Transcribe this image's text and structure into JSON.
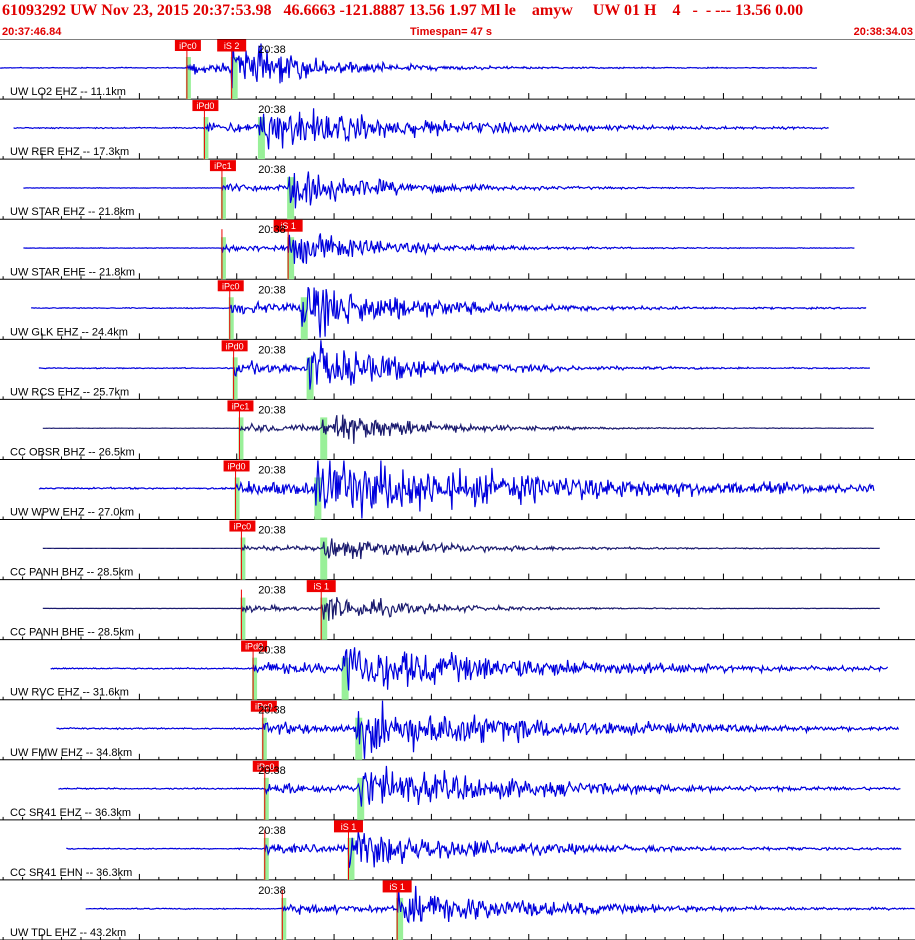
{
  "header": {
    "title": "61093292 UW Nov 23, 2015 20:37:53.98   46.6663 -121.8887 13.56 1.97 Ml le    amyw     UW 01 H    4   -  - --- 13.56 0.00",
    "start_time": "20:37:46.84",
    "timespan": "Timespan=  47 s",
    "end_time": "20:38:34.03"
  },
  "colors": {
    "trace_primary": "#0000dd",
    "trace_secondary": "#1a1a6e",
    "pick_box": "#ee0000",
    "pick_box_light": "#ffdddd",
    "pick_window": "#99f099",
    "header_text": "#e00000",
    "tick": "#000000"
  },
  "chart_data": {
    "type": "line",
    "title": "61093292 UW Nov 23, 2015 20:37:53.98",
    "start_time": "20:37:46.84",
    "end_time": "20:38:34.03",
    "timespan_s": 47,
    "minute_label": "20:38",
    "minute_offset_s": 13.16,
    "channels": [
      {
        "label": "UW LO2 EHZ -- 11.1km",
        "dist_km": 11.1,
        "trace_start_s": 0.0,
        "trace_end_s": 42.0,
        "p_time_s": 9.6,
        "p_label": "iPc0",
        "s_time_s": 11.9,
        "s_label": "iS 2",
        "amp": 1.0,
        "decay_s": 4.0,
        "color": "primary",
        "noise": 0.02
      },
      {
        "label": "UW RER EHZ -- 17.3km",
        "dist_km": 17.3,
        "trace_start_s": 0.7,
        "trace_end_s": 42.6,
        "p_time_s": 10.5,
        "p_label": "iPd0",
        "s_time_s": 13.3,
        "s_label": "",
        "amp": 0.9,
        "decay_s": 7.0,
        "color": "primary",
        "noise": 0.03
      },
      {
        "label": "UW STAR EHZ -- 21.8km",
        "dist_km": 21.8,
        "trace_start_s": 1.2,
        "trace_end_s": 43.9,
        "p_time_s": 11.4,
        "p_label": "iPc1",
        "s_time_s": 14.8,
        "s_label": "",
        "amp": 0.75,
        "decay_s": 5.0,
        "color": "primary",
        "noise": 0.015
      },
      {
        "label": "UW STAR EHE -- 21.8km",
        "dist_km": 21.8,
        "trace_start_s": 1.2,
        "trace_end_s": 43.9,
        "p_time_s": 11.4,
        "p_label": "",
        "s_time_s": 14.8,
        "s_label": "iS 1",
        "amp": 0.7,
        "decay_s": 5.0,
        "color": "primary",
        "noise": 0.015
      },
      {
        "label": "UW GLK EHZ -- 24.4km",
        "dist_km": 24.4,
        "trace_start_s": 1.6,
        "trace_end_s": 44.5,
        "p_time_s": 11.8,
        "p_label": "iPc0",
        "s_time_s": 15.5,
        "s_label": "",
        "amp": 1.1,
        "decay_s": 5.5,
        "color": "primary",
        "noise": 0.02
      },
      {
        "label": "UW RCS EHZ -- 25.7km",
        "dist_km": 25.7,
        "trace_start_s": 2.0,
        "trace_end_s": 44.7,
        "p_time_s": 12.0,
        "p_label": "iPd0",
        "s_time_s": 15.8,
        "s_label": "",
        "amp": 1.1,
        "decay_s": 5.0,
        "color": "primary",
        "noise": 0.02
      },
      {
        "label": "CC OBSR BHZ -- 26.5km",
        "dist_km": 26.5,
        "trace_start_s": 2.2,
        "trace_end_s": 44.9,
        "p_time_s": 12.3,
        "p_label": "iPc1",
        "s_time_s": 16.5,
        "s_label": "",
        "amp": 0.8,
        "decay_s": 4.5,
        "color": "secondary",
        "noise": 0.01
      },
      {
        "label": "UW WPW EHZ -- 27.0km",
        "dist_km": 27.0,
        "trace_start_s": 2.0,
        "trace_end_s": 44.9,
        "p_time_s": 12.1,
        "p_label": "iPd0",
        "s_time_s": 16.2,
        "s_label": "",
        "amp": 1.2,
        "decay_s": 12.0,
        "color": "primary",
        "noise": 0.03
      },
      {
        "label": "CC PANH BHZ -- 28.5km",
        "dist_km": 28.5,
        "trace_start_s": 2.2,
        "trace_end_s": 45.2,
        "p_time_s": 12.4,
        "p_label": "iPc0",
        "s_time_s": 16.5,
        "s_label": "",
        "amp": 0.5,
        "decay_s": 6.0,
        "color": "secondary",
        "noise": 0.01
      },
      {
        "label": "CC PANH BHE -- 28.5km",
        "dist_km": 28.5,
        "trace_start_s": 2.2,
        "trace_end_s": 45.2,
        "p_time_s": 12.4,
        "p_label": "",
        "s_time_s": 16.5,
        "s_label": "iS 1",
        "amp": 0.6,
        "decay_s": 4.5,
        "color": "secondary",
        "noise": 0.01
      },
      {
        "label": "UW RVC EHZ -- 31.6km",
        "dist_km": 31.6,
        "trace_start_s": 2.6,
        "trace_end_s": 45.6,
        "p_time_s": 13.0,
        "p_label": "iPd0",
        "s_time_s": 17.6,
        "s_label": "",
        "amp": 1.0,
        "decay_s": 9.0,
        "color": "primary",
        "noise": 0.03
      },
      {
        "label": "UW FMW EHZ -- 34.8km",
        "dist_km": 34.8,
        "trace_start_s": 2.9,
        "trace_end_s": 46.2,
        "p_time_s": 13.5,
        "p_label": "iPc0",
        "s_time_s": 18.3,
        "s_label": "",
        "amp": 1.0,
        "decay_s": 9.0,
        "color": "primary",
        "noise": 0.03
      },
      {
        "label": "CC SR41 EHZ -- 36.3km",
        "dist_km": 36.3,
        "trace_start_s": 3.0,
        "trace_end_s": 46.3,
        "p_time_s": 13.6,
        "p_label": "iPc0",
        "s_time_s": 18.4,
        "s_label": "",
        "amp": 0.9,
        "decay_s": 8.0,
        "color": "primary",
        "noise": 0.03
      },
      {
        "label": "CC SR41 EHN -- 36.3km",
        "dist_km": 36.3,
        "trace_start_s": 3.4,
        "trace_end_s": 46.3,
        "p_time_s": 13.6,
        "p_label": "",
        "s_time_s": 17.9,
        "s_label": "iS 1",
        "amp": 0.8,
        "decay_s": 7.0,
        "color": "primary",
        "noise": 0.03
      },
      {
        "label": "UW TDL EHZ -- 43.2km",
        "dist_km": 43.2,
        "trace_start_s": 4.4,
        "trace_end_s": 47.0,
        "p_time_s": 14.5,
        "p_label": "",
        "s_time_s": 20.4,
        "s_label": "iS 1",
        "amp": 0.8,
        "decay_s": 7.0,
        "color": "primary",
        "noise": 0.03
      }
    ]
  }
}
